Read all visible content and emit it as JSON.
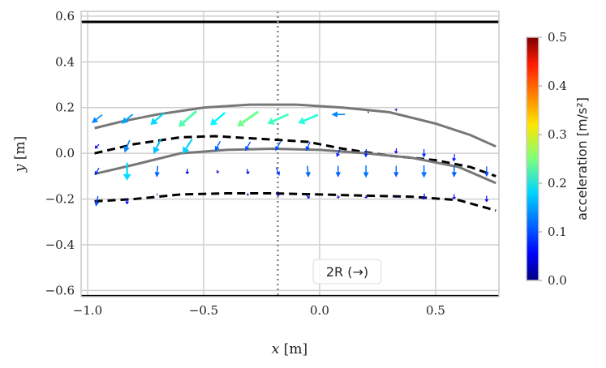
{
  "chart_data": {
    "type": "quiver",
    "xlabel_var": "x",
    "xlabel_unit": "[m]",
    "ylabel_var": "y",
    "ylabel_unit": "[m]",
    "xlim": [
      -1.028,
      0.773
    ],
    "ylim": [
      -0.627,
      0.621
    ],
    "xticks": [
      -1.0,
      -0.5,
      0.0,
      0.5
    ],
    "xtick_labels": [
      "−1.0",
      "−0.5",
      "0.0",
      "0.5"
    ],
    "yticks": [
      0.6,
      0.4,
      0.2,
      0.0,
      -0.2,
      -0.4,
      -0.6
    ],
    "ytick_labels": [
      "0.6",
      "0.4",
      "0.2",
      "0.0",
      "−0.2",
      "−0.4",
      "−0.6"
    ],
    "grid": true,
    "walls_y": [
      0.575,
      -0.625
    ],
    "dotted_x": -0.18,
    "annotation": "2R (→)",
    "colorbar": {
      "label": "acceleration [m/s²]",
      "range": [
        0,
        0.5
      ],
      "ticks": [
        "0.0",
        "0.1",
        "0.2",
        "0.3",
        "0.4",
        "0.5"
      ],
      "colormap": "jet"
    },
    "curves": [
      {
        "style": "solid",
        "color": "#777777",
        "points": [
          [
            -0.97,
            0.11
          ],
          [
            -0.85,
            0.14
          ],
          [
            -0.7,
            0.17
          ],
          [
            -0.5,
            0.2
          ],
          [
            -0.3,
            0.213
          ],
          [
            -0.1,
            0.213
          ],
          [
            0.1,
            0.2
          ],
          [
            0.3,
            0.18
          ],
          [
            0.5,
            0.13
          ],
          [
            0.65,
            0.08
          ],
          [
            0.76,
            0.03
          ]
        ]
      },
      {
        "style": "dashed",
        "color": "#000000",
        "points": [
          [
            -0.97,
            0.0
          ],
          [
            -0.8,
            0.04
          ],
          [
            -0.6,
            0.07
          ],
          [
            -0.45,
            0.075
          ],
          [
            -0.2,
            0.06
          ],
          [
            -0.05,
            0.05
          ],
          [
            0.1,
            0.02
          ],
          [
            0.3,
            -0.01
          ],
          [
            0.5,
            -0.03
          ],
          [
            0.65,
            -0.06
          ],
          [
            0.76,
            -0.1
          ]
        ]
      },
      {
        "style": "solid",
        "color": "#777777",
        "points": [
          [
            -0.97,
            -0.09
          ],
          [
            -0.8,
            -0.05
          ],
          [
            -0.6,
            0.0
          ],
          [
            -0.4,
            0.015
          ],
          [
            -0.2,
            0.02
          ],
          [
            0.0,
            0.015
          ],
          [
            0.2,
            0.0
          ],
          [
            0.4,
            -0.02
          ],
          [
            0.6,
            -0.06
          ],
          [
            0.76,
            -0.13
          ]
        ]
      },
      {
        "style": "dashed",
        "color": "#000000",
        "points": [
          [
            -0.97,
            -0.21
          ],
          [
            -0.8,
            -0.2
          ],
          [
            -0.6,
            -0.18
          ],
          [
            -0.4,
            -0.175
          ],
          [
            -0.2,
            -0.175
          ],
          [
            0.0,
            -0.18
          ],
          [
            0.2,
            -0.185
          ],
          [
            0.4,
            -0.19
          ],
          [
            0.6,
            -0.205
          ],
          [
            0.76,
            -0.25
          ]
        ]
      }
    ],
    "arrows": [
      [
        -0.96,
        0.15,
        -0.1,
        -0.08
      ],
      [
        -0.83,
        0.15,
        -0.11,
        -0.09
      ],
      [
        -0.7,
        0.15,
        -0.13,
        -0.11
      ],
      [
        -0.57,
        0.15,
        -0.17,
        -0.15
      ],
      [
        -0.44,
        0.15,
        -0.14,
        -0.12
      ],
      [
        -0.31,
        0.15,
        -0.2,
        -0.14
      ],
      [
        -0.18,
        0.15,
        -0.2,
        -0.09
      ],
      [
        -0.05,
        0.15,
        -0.19,
        -0.08
      ],
      [
        0.08,
        0.17,
        -0.13,
        0
      ],
      [
        0.21,
        0.18,
        -0.01,
        -0.005
      ],
      [
        0.33,
        0.19,
        -0.005,
        0.025
      ],
      [
        -0.96,
        0.03,
        -0.04,
        -0.04
      ],
      [
        -0.83,
        0.03,
        -0.05,
        -0.12
      ],
      [
        -0.7,
        0.03,
        -0.07,
        -0.14
      ],
      [
        -0.57,
        0.03,
        -0.09,
        -0.14
      ],
      [
        -0.44,
        0.03,
        -0.05,
        -0.1
      ],
      [
        -0.31,
        0.03,
        -0.05,
        -0.09
      ],
      [
        -0.18,
        0.03,
        -0.05,
        -0.09
      ],
      [
        -0.05,
        0.03,
        -0.04,
        -0.09
      ],
      [
        0.08,
        0.0,
        -0.03,
        -0.07
      ],
      [
        0.2,
        0.0,
        -0.005,
        -0.08
      ],
      [
        0.33,
        0.01,
        -0.005,
        -0.05
      ],
      [
        0.45,
        0.0,
        0,
        -0.08
      ],
      [
        0.58,
        -0.02,
        -0.01,
        -0.07
      ],
      [
        -0.96,
        -0.08,
        -0.04,
        -0.07
      ],
      [
        -0.83,
        -0.08,
        0,
        -0.17
      ],
      [
        -0.7,
        -0.08,
        -0.01,
        -0.11
      ],
      [
        -0.57,
        -0.08,
        -0.005,
        -0.05
      ],
      [
        -0.44,
        -0.08,
        0.01,
        -0.03
      ],
      [
        -0.31,
        -0.08,
        0.01,
        -0.05
      ],
      [
        -0.18,
        -0.08,
        0.03,
        -0.08
      ],
      [
        -0.05,
        -0.08,
        0.01,
        -0.11
      ],
      [
        0.08,
        -0.08,
        0,
        -0.11
      ],
      [
        0.2,
        -0.08,
        0,
        -0.12
      ],
      [
        0.33,
        -0.08,
        0,
        -0.11
      ],
      [
        0.45,
        -0.08,
        0,
        -0.12
      ],
      [
        0.58,
        -0.08,
        0,
        -0.11
      ],
      [
        0.72,
        -0.08,
        0,
        -0.1
      ],
      [
        -0.96,
        -0.21,
        -0.02,
        -0.1
      ],
      [
        -0.83,
        -0.21,
        0,
        -0.06
      ],
      [
        -0.7,
        -0.18,
        -0.01,
        0.003
      ],
      [
        -0.31,
        -0.18,
        0.02,
        0
      ],
      [
        -0.18,
        -0.18,
        0.03,
        -0.02
      ],
      [
        -0.05,
        -0.19,
        0.03,
        -0.03
      ],
      [
        0.08,
        -0.19,
        0.01,
        -0.03
      ],
      [
        0.2,
        -0.19,
        0,
        -0.03
      ],
      [
        0.33,
        -0.19,
        0,
        -0.02
      ],
      [
        0.45,
        -0.19,
        -0.01,
        -0.06
      ],
      [
        0.58,
        -0.19,
        0,
        -0.05
      ],
      [
        0.72,
        -0.2,
        0,
        -0.06
      ]
    ]
  }
}
